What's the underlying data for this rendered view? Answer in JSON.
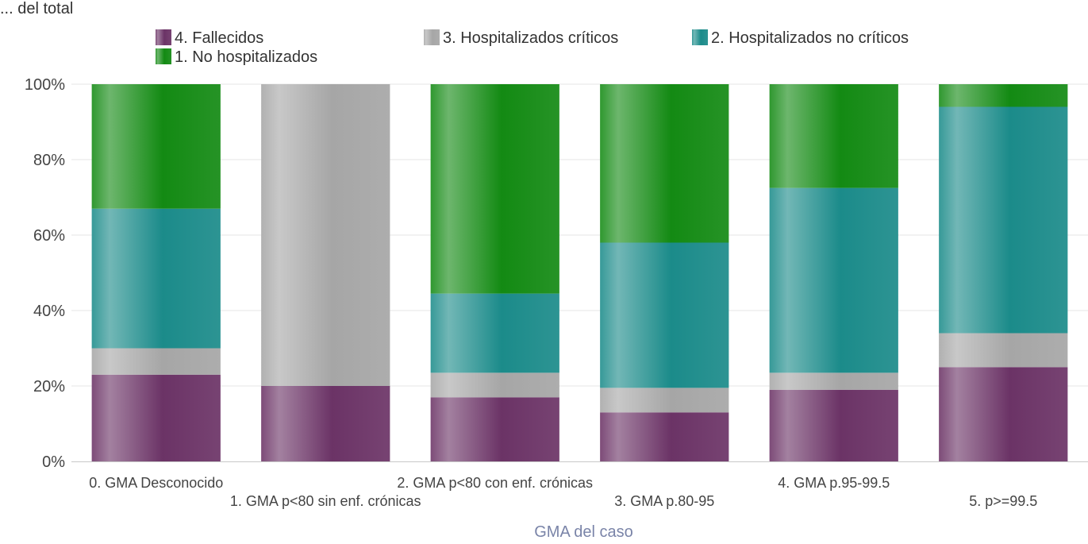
{
  "header": {
    "clipped_title": "... del total"
  },
  "chart_data": {
    "type": "bar",
    "stacked": true,
    "normalized": true,
    "categories": [
      "0. GMA Desconocido",
      "1. GMA p<80 sin enf. crónicas",
      "2. GMA p<80 con enf. crónicas",
      "3. GMA p.80-95",
      "4. GMA p.95-99.5",
      "5. p>=99.5"
    ],
    "series": [
      {
        "name": "4. Fallecidos",
        "color": "#6b3366",
        "values": [
          23,
          20,
          17,
          13,
          19,
          25
        ]
      },
      {
        "name": "3. Hospitalizados críticos",
        "color": "#a6a6a6",
        "values": [
          7,
          80,
          6.5,
          6.5,
          4.5,
          9
        ]
      },
      {
        "name": "2. Hospitalizados no críticos",
        "color": "#1b8b8a",
        "values": [
          37,
          0,
          21,
          38.5,
          49,
          60
        ]
      },
      {
        "name": "1. No hospitalizados",
        "color": "#138a13",
        "values": [
          33,
          0,
          55.5,
          42,
          27.5,
          6
        ]
      }
    ],
    "xlabel": "GMA del caso",
    "ylabel": "",
    "ylim": [
      0,
      100
    ],
    "yticks": [
      "0%",
      "20%",
      "40%",
      "60%",
      "80%",
      "100%"
    ],
    "legend_position": "top",
    "grid": true
  }
}
